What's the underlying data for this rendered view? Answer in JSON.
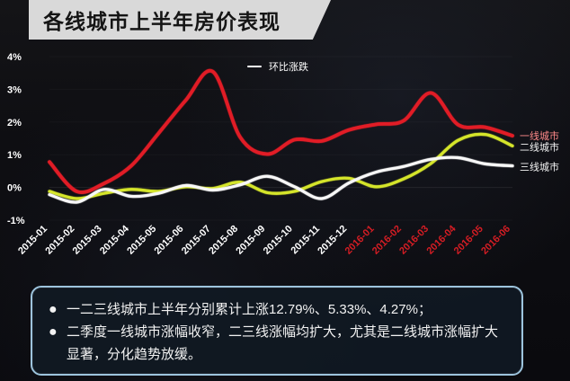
{
  "title": "各线城市上半年房价表现",
  "legend": {
    "label": "环比涨跌"
  },
  "summary": {
    "items": [
      "一二三线城市上半年分别累计上涨12.79%、5.33%、4.27%；",
      "二季度一线城市涨幅收窄，二三线涨幅均扩大，尤其是二线城市涨幅扩大显著，分化趋势放缓。"
    ]
  },
  "chart_data": {
    "type": "line",
    "ylabel": "",
    "xlabel": "",
    "ylim": [
      -1,
      4
    ],
    "y_ticks": [
      "4%",
      "3%",
      "2%",
      "1%",
      "0%",
      "-1%"
    ],
    "categories": [
      "2015-01",
      "2015-02",
      "2015-03",
      "2015-04",
      "2015-05",
      "2015-06",
      "2015-07",
      "2015-08",
      "2015-09",
      "2015-10",
      "2015-11",
      "2015-12",
      "2016-01",
      "2016-02",
      "2016-03",
      "2016-04",
      "2016-05",
      "2016-06"
    ],
    "category_colors": [
      "#ffffff",
      "#ffffff",
      "#ffffff",
      "#ffffff",
      "#ffffff",
      "#ffffff",
      "#ffffff",
      "#ffffff",
      "#ffffff",
      "#ffffff",
      "#ffffff",
      "#ffffff",
      "#d61d24",
      "#d61d24",
      "#d61d24",
      "#d61d24",
      "#d61d24",
      "#d61d24"
    ],
    "series": [
      {
        "name": "一线城市",
        "color": "#e11f26",
        "values": [
          0.78,
          -0.12,
          0.12,
          0.66,
          1.65,
          2.66,
          3.54,
          1.54,
          1.02,
          1.46,
          1.42,
          1.76,
          1.93,
          2.04,
          2.89,
          1.92,
          1.84,
          1.58
        ]
      },
      {
        "name": "二线城市",
        "color": "#d5e52c",
        "values": [
          -0.12,
          -0.34,
          -0.18,
          -0.06,
          -0.12,
          0.02,
          -0.03,
          0.16,
          -0.16,
          -0.12,
          0.18,
          0.28,
          0.02,
          0.26,
          0.73,
          1.44,
          1.62,
          1.27
        ]
      },
      {
        "name": "三线城市",
        "color": "#f7f7f7",
        "values": [
          -0.22,
          -0.45,
          -0.06,
          -0.27,
          -0.18,
          0.06,
          -0.08,
          0.08,
          0.34,
          0.02,
          -0.34,
          0.14,
          0.47,
          0.64,
          0.86,
          0.91,
          0.72,
          0.66
        ]
      }
    ]
  }
}
